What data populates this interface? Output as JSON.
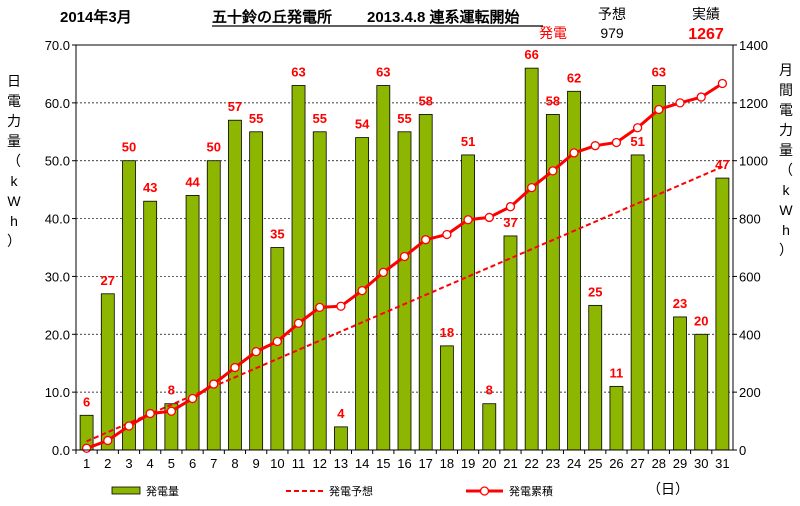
{
  "header": {
    "month_title": "2014年3月",
    "plant_title": "五十鈴の丘発電所",
    "start_note": "2013.4.8  連系運転開始",
    "col_forecast": "予想",
    "col_actual": "実績",
    "row_label": "発電",
    "forecast_value": "979",
    "actual_value": "1267"
  },
  "chart_data": {
    "type": "bar",
    "x": [
      1,
      2,
      3,
      4,
      5,
      6,
      7,
      8,
      9,
      10,
      11,
      12,
      13,
      14,
      15,
      16,
      17,
      18,
      19,
      20,
      21,
      22,
      23,
      24,
      25,
      26,
      27,
      28,
      29,
      30,
      31
    ],
    "xlabel_unit": "（日）",
    "y_left_label": "日電力量（kWh）",
    "y_right_label": "月間電力量（kWh）",
    "y_left_range": [
      0,
      70
    ],
    "y_left_ticks": [
      "0.0",
      "10.0",
      "20.0",
      "30.0",
      "40.0",
      "50.0",
      "60.0",
      "70.0"
    ],
    "y_right_range": [
      0,
      1400
    ],
    "y_right_ticks": [
      "0",
      "200",
      "400",
      "600",
      "800",
      "1000",
      "1200",
      "1400"
    ],
    "grid": true,
    "legend_position": "bottom",
    "series": [
      {
        "name": "発電量",
        "kind": "bar",
        "axis": "left",
        "color": "#8db600",
        "values": [
          6,
          27,
          50,
          43,
          8,
          44,
          50,
          57,
          55,
          35,
          63,
          55,
          4,
          54,
          63,
          55,
          58,
          18,
          51,
          8,
          37,
          66,
          58,
          62,
          25,
          11,
          51,
          63,
          23,
          20,
          47
        ],
        "labels": [
          "6",
          "27",
          "50",
          "43",
          "8",
          "44",
          "50",
          "57",
          "55",
          "35",
          "63",
          "55",
          "4",
          "54",
          "63",
          "55",
          "58",
          "18",
          "51",
          "8",
          "37",
          "66",
          "58",
          "62",
          "25",
          "11",
          "51",
          "63",
          "23",
          "20",
          "47"
        ]
      },
      {
        "name": "発電予想",
        "kind": "dashed-line",
        "axis": "right",
        "color": "#ff0000",
        "start": [
          1,
          30
        ],
        "end": [
          31,
          979
        ]
      },
      {
        "name": "発電累積",
        "kind": "line-markers",
        "axis": "right",
        "color": "#ff0000",
        "values": [
          6,
          33,
          83,
          126,
          134,
          178,
          228,
          285,
          340,
          375,
          438,
          493,
          497,
          551,
          614,
          669,
          727,
          745,
          796,
          804,
          841,
          907,
          965,
          1027,
          1052,
          1063,
          1114,
          1177,
          1200,
          1220,
          1267
        ]
      }
    ]
  }
}
